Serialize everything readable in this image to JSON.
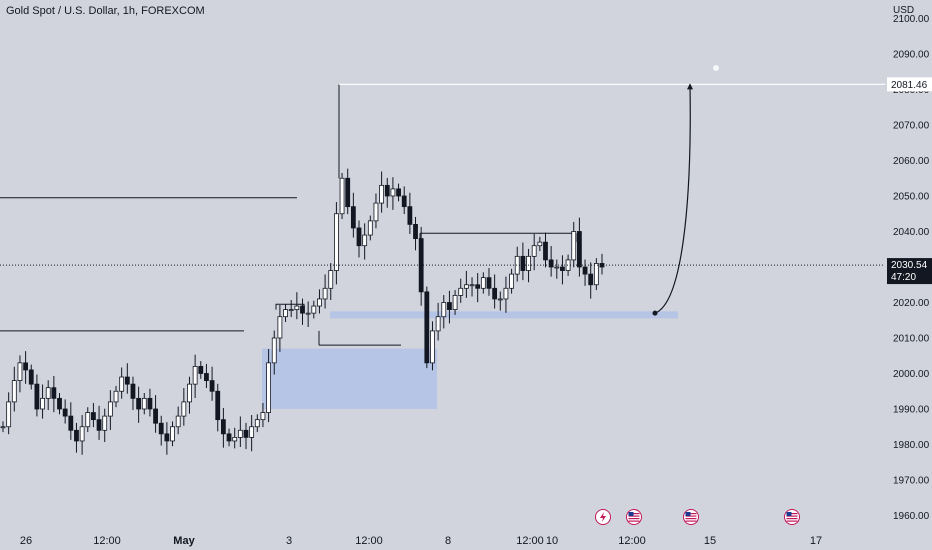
{
  "header": {
    "title": "Gold Spot / U.S. Dollar, 1h, FOREXCOM",
    "currency": "USD"
  },
  "colors": {
    "background": "#d1d4dc",
    "candle": "#131722",
    "zone": "#b3c3e6",
    "target_line": "#ffffff",
    "price_tag": "#131722"
  },
  "chart_data": {
    "type": "candlestick",
    "symbol": "Gold Spot / U.S. Dollar",
    "interval": "1h",
    "exchange": "FOREXCOM",
    "y_axis": {
      "ticks": [
        1960,
        1970,
        1980,
        1990,
        2000,
        2010,
        2020,
        2030,
        2040,
        2050,
        2060,
        2070,
        2080,
        2090,
        2100
      ],
      "tick_labels": [
        "1960.00",
        "1970.00",
        "1980.00",
        "1990.00",
        "2000.00",
        "2010.00",
        "2020.00",
        "2030.00",
        "2040.00",
        "2050.00",
        "2060.00",
        "2070.00",
        "2080.00",
        "2090.00",
        "2100.00"
      ],
      "range": [
        1958.5,
        2107
      ]
    },
    "x_axis": {
      "labels": [
        "26",
        "12:00",
        "May",
        "3",
        "12:00",
        "8",
        "12:00",
        "10",
        "12:00",
        "15",
        "17"
      ]
    },
    "price_close_series": [
      1985,
      1992,
      1998,
      2003,
      2001,
      1997,
      1990,
      1993,
      1996,
      1993,
      1990,
      1988,
      1984,
      1981,
      1985,
      1989,
      1987,
      1984,
      1988,
      1992,
      1995,
      1999,
      1997,
      1993,
      1990,
      1993,
      1990,
      1986,
      1983,
      1981,
      1985,
      1988,
      1992,
      1997,
      2002,
      2000,
      1998,
      1995,
      1987,
      1983,
      1981,
      1982,
      1984,
      1982,
      1985,
      1987,
      1989,
      2003,
      2010,
      2016,
      2018,
      2018,
      2019,
      2017,
      2017,
      2019,
      2021,
      2024,
      2029,
      2045,
      2055,
      2047,
      2041,
      2036,
      2039,
      2043,
      2048,
      2053,
      2050,
      2052,
      2050,
      2047,
      2042,
      2038,
      2023,
      2003,
      2012,
      2016,
      2020,
      2018,
      2022,
      2024,
      2025,
      2025,
      2024,
      2027,
      2024,
      2021,
      2021,
      2024,
      2028,
      2033,
      2029,
      2033,
      2036,
      2037,
      2032,
      2030,
      2030,
      2029,
      2032,
      2040,
      2030,
      2028,
      2025,
      2031,
      2030
    ],
    "levels": [
      {
        "name": "target",
        "price": 2081.46,
        "label": "2081.46"
      },
      {
        "name": "current",
        "price": 2030.54,
        "label": "2030.54",
        "countdown": "47:20"
      },
      {
        "name": "resistance-left",
        "price": 2049.5
      },
      {
        "name": "support-left",
        "price": 2012
      },
      {
        "name": "range-high",
        "price": 2039.5
      },
      {
        "name": "range-low",
        "price": 2008
      }
    ],
    "zones": [
      {
        "name": "demand-zone",
        "from": 1990,
        "to": 2007
      },
      {
        "name": "support-zone",
        "from": 2016.5,
        "to": 2017.5
      }
    ],
    "projection": {
      "from_price": 2017,
      "to_price": 2081.46
    },
    "event_icons": [
      "lightning-icon",
      "us-flag-icon",
      "us-flag-icon",
      "us-flag-icon"
    ]
  }
}
